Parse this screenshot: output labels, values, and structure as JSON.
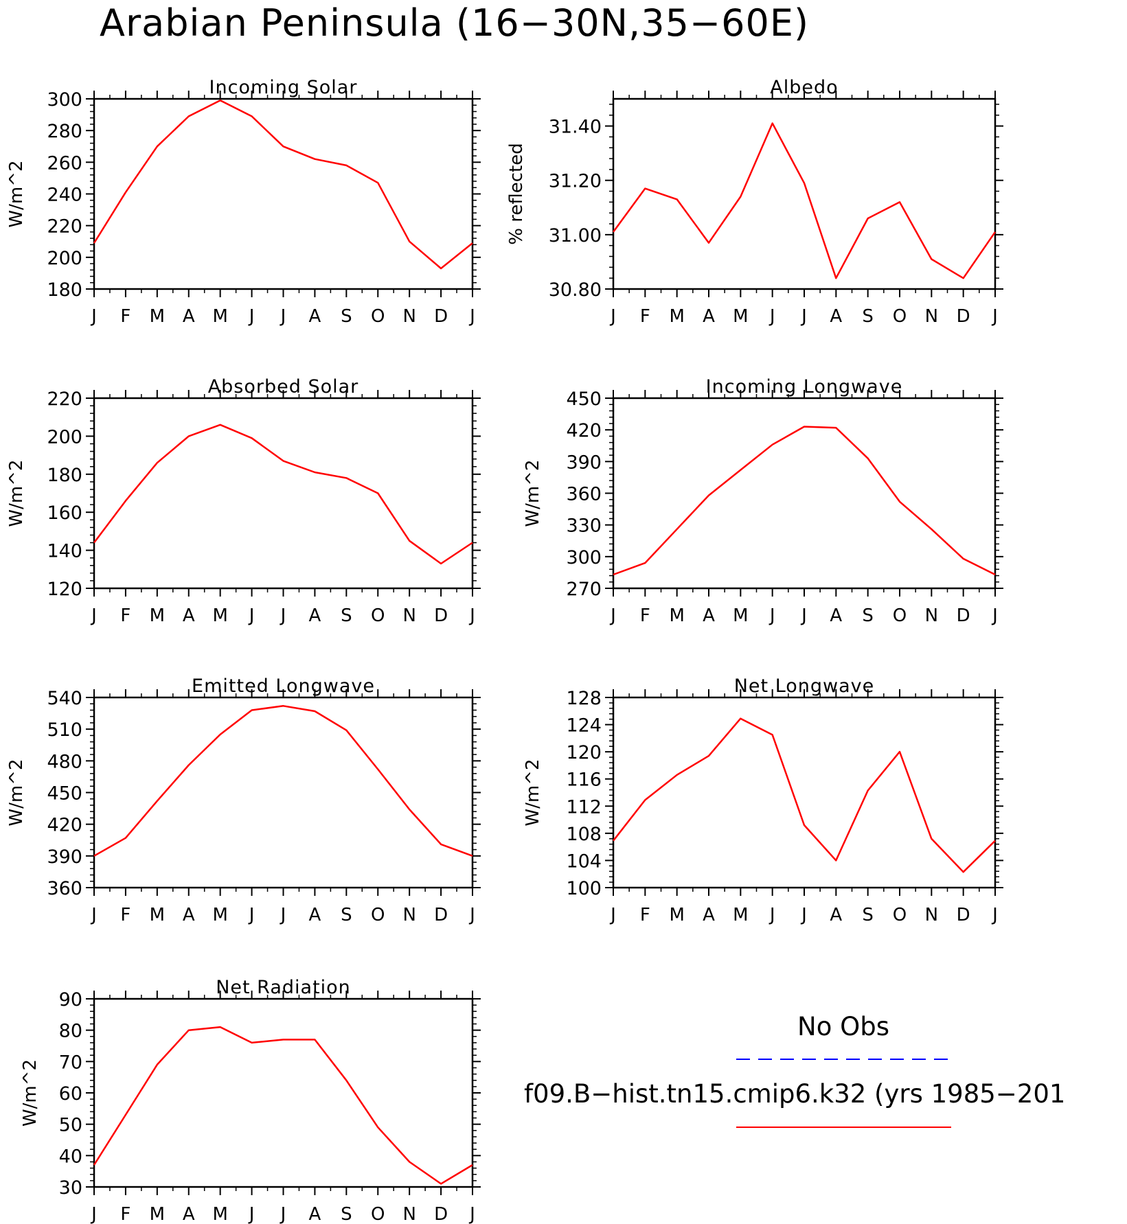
{
  "page_title": "Arabian Peninsula (16−30N,35−60E)",
  "month_labels": [
    "J",
    "F",
    "M",
    "A",
    "M",
    "J",
    "J",
    "A",
    "S",
    "O",
    "N",
    "D",
    "J"
  ],
  "colors": {
    "model_line": "#ff0000",
    "obs_line": "#0000ff",
    "axis": "#000000"
  },
  "legend": {
    "obs_label": "No Obs",
    "model_label": "f09.B−hist.tn15.cmip6.k32 (yrs 1985−201"
  },
  "chart_data": [
    {
      "type": "line",
      "title": "Incoming Solar",
      "ylabel": "W/m^2",
      "ylim": [
        180,
        300
      ],
      "yticks": [
        180,
        200,
        220,
        240,
        260,
        280,
        300
      ],
      "ytick_labels": [
        "180",
        "200",
        "220",
        "240",
        "260",
        "280",
        "300"
      ],
      "categories": [
        "J",
        "F",
        "M",
        "A",
        "M",
        "J",
        "J",
        "A",
        "S",
        "O",
        "N",
        "D",
        "J"
      ],
      "series": [
        {
          "values": [
            209,
            241,
            270,
            289,
            299,
            289,
            270,
            262,
            258,
            247,
            210,
            193,
            209
          ]
        }
      ]
    },
    {
      "type": "line",
      "title": "Albedo",
      "ylabel": "% reflected",
      "ylim": [
        30.8,
        31.5
      ],
      "yticks": [
        30.8,
        31.0,
        31.2,
        31.4
      ],
      "ytick_labels": [
        "30.80",
        "31.00",
        "31.20",
        "31.40"
      ],
      "categories": [
        "J",
        "F",
        "M",
        "A",
        "M",
        "J",
        "J",
        "A",
        "S",
        "O",
        "N",
        "D",
        "J"
      ],
      "series": [
        {
          "values": [
            31.01,
            31.17,
            31.13,
            30.97,
            31.14,
            31.41,
            31.19,
            30.84,
            31.06,
            31.12,
            30.91,
            30.84,
            31.01
          ]
        }
      ]
    },
    {
      "type": "line",
      "title": "Absorbed Solar",
      "ylabel": "W/m^2",
      "ylim": [
        120,
        220
      ],
      "yticks": [
        120,
        140,
        160,
        180,
        200,
        220
      ],
      "ytick_labels": [
        "120",
        "140",
        "160",
        "180",
        "200",
        "220"
      ],
      "categories": [
        "J",
        "F",
        "M",
        "A",
        "M",
        "J",
        "J",
        "A",
        "S",
        "O",
        "N",
        "D",
        "J"
      ],
      "series": [
        {
          "values": [
            144,
            166,
            186,
            200,
            206,
            199,
            187,
            181,
            178,
            170,
            145,
            133,
            144
          ]
        }
      ]
    },
    {
      "type": "line",
      "title": "Incoming Longwave",
      "ylabel": "W/m^2",
      "ylim": [
        270,
        450
      ],
      "yticks": [
        270,
        300,
        330,
        360,
        390,
        420,
        450
      ],
      "ytick_labels": [
        "270",
        "300",
        "330",
        "360",
        "390",
        "420",
        "450"
      ],
      "categories": [
        "J",
        "F",
        "M",
        "A",
        "M",
        "J",
        "J",
        "A",
        "S",
        "O",
        "N",
        "D",
        "J"
      ],
      "series": [
        {
          "values": [
            283,
            294,
            326,
            358,
            382,
            406,
            423,
            422,
            393,
            352,
            326,
            298,
            283
          ]
        }
      ]
    },
    {
      "type": "line",
      "title": "Emitted Longwave",
      "ylabel": "W/m^2",
      "ylim": [
        360,
        540
      ],
      "yticks": [
        360,
        390,
        420,
        450,
        480,
        510,
        540
      ],
      "ytick_labels": [
        "360",
        "390",
        "420",
        "450",
        "480",
        "510",
        "540"
      ],
      "categories": [
        "J",
        "F",
        "M",
        "A",
        "M",
        "J",
        "J",
        "A",
        "S",
        "O",
        "N",
        "D",
        "J"
      ],
      "series": [
        {
          "values": [
            390,
            407,
            442,
            476,
            505,
            528,
            532,
            527,
            509,
            472,
            434,
            401,
            390
          ]
        }
      ]
    },
    {
      "type": "line",
      "title": "Net Longwave",
      "ylabel": "W/m^2",
      "ylim": [
        100,
        128
      ],
      "yticks": [
        100,
        104,
        108,
        112,
        116,
        120,
        124,
        128
      ],
      "ytick_labels": [
        "100",
        "104",
        "108",
        "112",
        "116",
        "120",
        "124",
        "128"
      ],
      "categories": [
        "J",
        "F",
        "M",
        "A",
        "M",
        "J",
        "J",
        "A",
        "S",
        "O",
        "N",
        "D",
        "J"
      ],
      "series": [
        {
          "values": [
            106.9,
            112.9,
            116.6,
            119.4,
            124.9,
            122.5,
            109.2,
            104.0,
            114.3,
            120.0,
            107.2,
            102.3,
            106.9
          ]
        }
      ]
    },
    {
      "type": "line",
      "title": "Net Radiation",
      "ylabel": "W/m^2",
      "ylim": [
        30,
        90
      ],
      "yticks": [
        30,
        40,
        50,
        60,
        70,
        80,
        90
      ],
      "ytick_labels": [
        "30",
        "40",
        "50",
        "60",
        "70",
        "80",
        "90"
      ],
      "categories": [
        "J",
        "F",
        "M",
        "A",
        "M",
        "J",
        "J",
        "A",
        "S",
        "O",
        "N",
        "D",
        "J"
      ],
      "series": [
        {
          "values": [
            37,
            53,
            69,
            80,
            81,
            76,
            77,
            77,
            64,
            49,
            38,
            31,
            37
          ]
        }
      ]
    }
  ]
}
